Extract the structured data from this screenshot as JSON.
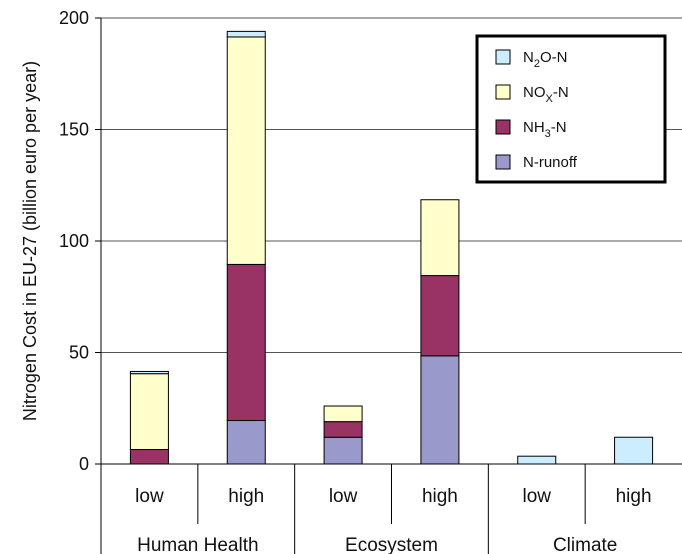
{
  "chart_data": {
    "type": "bar",
    "stacked": true,
    "title": "",
    "ylabel": "Nitrogen Cost  in EU-27 (billion euro per year)",
    "ylim": [
      0,
      200
    ],
    "yticks": [
      "0",
      "50",
      "100",
      "150",
      "200"
    ],
    "grid": "horizontal",
    "legend_position": "top-right",
    "groups": [
      "Human Health",
      "Ecosystem",
      "Climate"
    ],
    "categories": [
      "low",
      "high",
      "low",
      "high",
      "low",
      "high"
    ],
    "category_groups": [
      "Human Health",
      "Human Health",
      "Ecosystem",
      "Ecosystem",
      "Climate",
      "Climate"
    ],
    "series": [
      {
        "name": "N-runoff",
        "color": "#9999cc",
        "values": [
          0,
          19.5,
          12,
          48.5,
          0,
          0
        ]
      },
      {
        "name": "NH3-N",
        "color": "#993366",
        "values": [
          6.5,
          70,
          7,
          36,
          0,
          0
        ]
      },
      {
        "name": "NOx-N",
        "color": "#ffffcc",
        "values": [
          34,
          102,
          7,
          34,
          0,
          0
        ]
      },
      {
        "name": "N2O-N",
        "color": "#ccecff",
        "values": [
          1,
          2.5,
          0,
          0,
          3.5,
          12
        ]
      }
    ]
  },
  "legend": [
    {
      "base": "N",
      "sub": "2",
      "rest": "O-N",
      "color": "#ccecff"
    },
    {
      "base": "NO",
      "sub": "X",
      "rest": "-N",
      "color": "#ffffcc"
    },
    {
      "base": "NH",
      "sub": "3",
      "rest": "-N",
      "color": "#993366"
    },
    {
      "base": "N-runoff",
      "sub": "",
      "rest": "",
      "color": "#9999cc"
    }
  ]
}
